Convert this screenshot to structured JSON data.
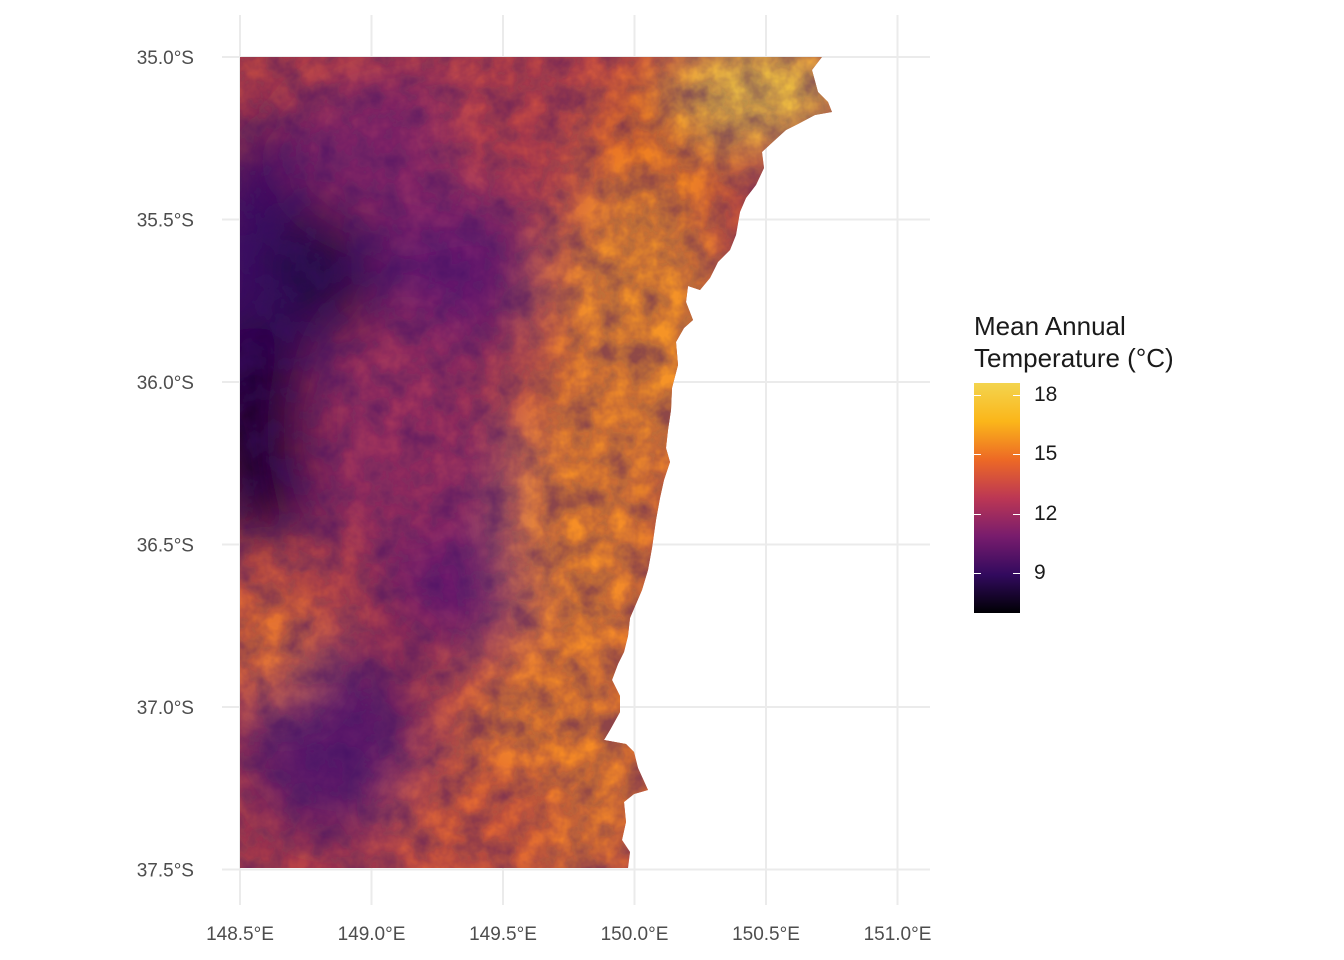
{
  "map": {
    "x_ticks": [
      {
        "value": 148.5,
        "label": "148.5°E"
      },
      {
        "value": 149.0,
        "label": "149.0°E"
      },
      {
        "value": 149.5,
        "label": "149.5°E"
      },
      {
        "value": 150.0,
        "label": "150.0°E"
      },
      {
        "value": 150.5,
        "label": "150.5°E"
      },
      {
        "value": 151.0,
        "label": "151.0°E"
      }
    ],
    "y_ticks": [
      {
        "value": -35.0,
        "label": "35.0°S"
      },
      {
        "value": -35.5,
        "label": "35.5°S"
      },
      {
        "value": -36.0,
        "label": "36.0°S"
      },
      {
        "value": -36.5,
        "label": "36.5°S"
      },
      {
        "value": -37.0,
        "label": "37.0°S"
      },
      {
        "value": -37.5,
        "label": "37.5°S"
      }
    ],
    "lon_range": [
      148.5,
      150.98
    ],
    "lat_range": [
      -37.5,
      -35.0
    ],
    "grid": true,
    "colormap": "inferno",
    "colors": [
      "#000004",
      "#320a5e",
      "#781c6d",
      "#bc3754",
      "#ed6925",
      "#fbb61a",
      "#f3d44e"
    ]
  },
  "legend": {
    "title_line1": "Mean Annual",
    "title_line2": "Temperature (°C)",
    "min": 7.0,
    "max": 18.6,
    "ticks": [
      {
        "value": 18,
        "label": "18"
      },
      {
        "value": 15,
        "label": "15"
      },
      {
        "value": 12,
        "label": "12"
      },
      {
        "value": 9,
        "label": "9"
      }
    ]
  }
}
